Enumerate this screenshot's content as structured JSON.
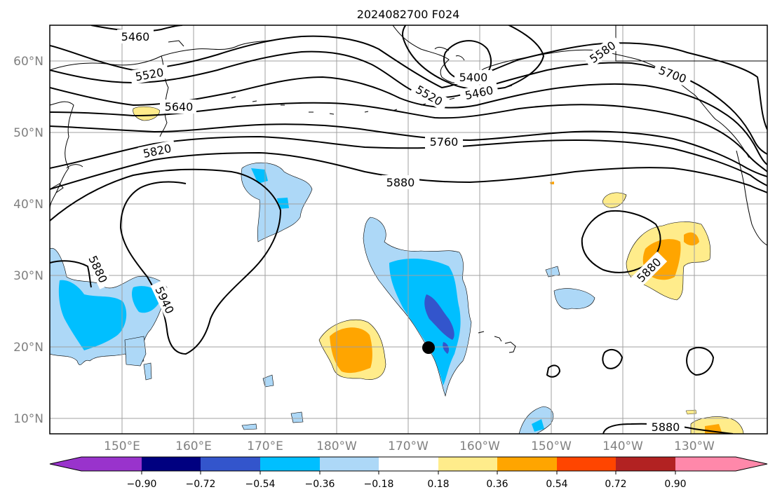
{
  "title": "2024082700 F024",
  "lat_labels": [
    "60°N",
    "50°N",
    "40°N",
    "30°N",
    "20°N",
    "10°N"
  ],
  "lon_labels": [
    "150°E",
    "160°E",
    "170°E",
    "180°W",
    "170°W",
    "160°W",
    "150°W",
    "140°W",
    "130°W"
  ],
  "contour_labels": [
    "5460",
    "5520",
    "5640",
    "5820",
    "5400",
    "5520",
    "5460",
    "5580",
    "5700",
    "5760",
    "5880",
    "5880",
    "5940",
    "5880",
    "5880"
  ],
  "colorbar": {
    "ticks": [
      "−0.90",
      "−0.72",
      "−0.54",
      "−0.36",
      "−0.18",
      "0.18",
      "0.36",
      "0.54",
      "0.72",
      "0.90"
    ],
    "colors": [
      "#9933cc",
      "#000080",
      "#3355cc",
      "#00bfff",
      "#add8f7",
      "#ffffff",
      "#ffec8b",
      "#ffa500",
      "#ff4500",
      "#b22222",
      "#ff88aa"
    ]
  },
  "colors": {
    "line": "#000000",
    "grid": "#a0a0a0",
    "land_outline": "#000000"
  }
}
